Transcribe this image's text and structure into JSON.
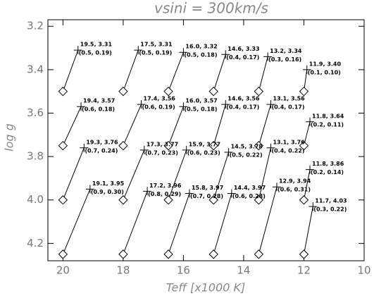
{
  "chart_data": {
    "type": "scatter",
    "title": "vsini = 300km/s",
    "xlabel": "Teff [x1000 K]",
    "ylabel": "log g",
    "xlim": [
      20.5,
      10
    ],
    "ylim": [
      4.28,
      3.17
    ],
    "xticks": [
      20,
      18,
      16,
      14,
      12,
      10
    ],
    "yticks": [
      {
        "value": 3.2,
        "label": "3.2"
      },
      {
        "value": 3.4,
        "label": "3.4"
      },
      {
        "value": 3.6,
        "label": "3.6"
      },
      {
        "value": 3.8,
        "label": "3.8"
      },
      {
        "value": 4,
        "label": "4.0"
      },
      {
        "value": 4.2,
        "label": "4.2"
      }
    ],
    "color": "#000000",
    "series": [
      {
        "marker": "diamond",
        "x": [
          20,
          18,
          16.5,
          15,
          13.5,
          12,
          20,
          18,
          16.5,
          15,
          13.5,
          12,
          20,
          18,
          16.5,
          15,
          13.5,
          12,
          20,
          18,
          16.5,
          15,
          13.5,
          12
        ],
        "values": [
          3.5,
          3.5,
          3.5,
          3.5,
          3.5,
          3.5,
          3.75,
          3.75,
          3.75,
          3.75,
          3.75,
          3.75,
          4,
          4,
          4,
          4,
          4,
          4,
          4.25,
          4.25,
          4.25,
          4.25,
          4.25,
          4.25
        ]
      },
      {
        "marker": "cross",
        "x": [
          19.5,
          17.5,
          16.0,
          14.6,
          13.2,
          11.9,
          19.4,
          17.4,
          16.0,
          14.6,
          13.1,
          11.8,
          19.3,
          17.3,
          15.9,
          14.5,
          13.1,
          11.8,
          19.1,
          17.2,
          15.8,
          14.4,
          12.9,
          11.7
        ],
        "values": [
          3.31,
          3.31,
          3.32,
          3.33,
          3.34,
          3.4,
          3.57,
          3.56,
          3.57,
          3.56,
          3.56,
          3.64,
          3.76,
          3.77,
          3.77,
          3.78,
          3.76,
          3.86,
          3.95,
          3.96,
          3.97,
          3.97,
          3.94,
          4.03
        ],
        "x_errors": [
          0.5,
          0.5,
          0.5,
          0.4,
          0.3,
          0.1,
          0.6,
          0.6,
          0.5,
          0.4,
          0.4,
          0.2,
          0.7,
          0.7,
          0.6,
          0.5,
          0.4,
          0.2,
          0.9,
          0.8,
          0.7,
          0.6,
          0.6,
          0.3
        ],
        "errors": [
          0.19,
          0.19,
          0.18,
          0.17,
          0.16,
          0.1,
          0.18,
          0.19,
          0.18,
          0.17,
          0.17,
          0.11,
          0.24,
          0.23,
          0.23,
          0.22,
          0.22,
          0.14,
          0.3,
          0.29,
          0.28,
          0.28,
          0.31,
          0.22
        ],
        "value_labels": [
          "19.5, 3.31",
          "17.5, 3.31",
          "16.0, 3.32",
          "14.6, 3.33",
          "13.2, 3.34",
          "11.9, 3.40",
          "19.4, 3.57",
          "17.4, 3.56",
          "16.0, 3.57",
          "14.6, 3.56",
          "13.1, 3.56",
          "11.8, 3.64",
          "19.3, 3.76",
          "17.3, 3.77",
          "15.9, 3.77",
          "14.5, 3.78",
          "13.1, 3.76",
          "11.8, 3.86",
          "19.1, 3.95",
          "17.2, 3.96",
          "15.8, 3.97",
          "14.4, 3.97",
          "12.9, 3.94",
          "11.7, 4.03"
        ],
        "error_labels": [
          "(0.5, 0.19)",
          "(0.5, 0.19)",
          "(0.5, 0.18)",
          "(0.4, 0.17)",
          "(0.3, 0.16)",
          "(0.1, 0.10)",
          "(0.6, 0.18)",
          "(0.6, 0.19)",
          "(0.5, 0.18)",
          "(0.4, 0.17)",
          "(0.4, 0.17)",
          "(0.2, 0.11)",
          "(0.7, 0.24)",
          "(0.7, 0.23)",
          "(0.6, 0.23)",
          "(0.5, 0.22)",
          "(0.4, 0.22)",
          "(0.2, 0.14)",
          "(0.9, 0.30)",
          "(0.8, 0.29)",
          "(0.7, 0.28)",
          "(0.6, 0.28)",
          "(0.6, 0.31)",
          "(0.3, 0.22)"
        ]
      }
    ]
  }
}
